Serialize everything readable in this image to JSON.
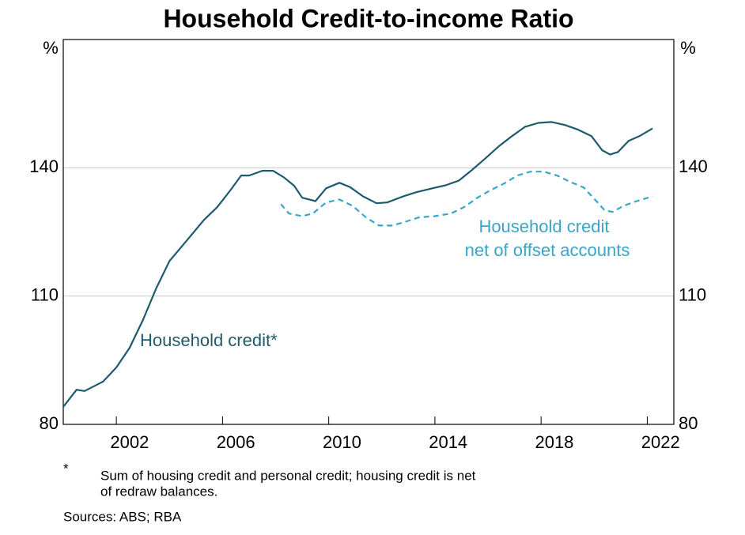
{
  "chart_data": {
    "type": "line",
    "title": "Household Credit-to-income Ratio",
    "y_unit": "%",
    "y2_unit": "%",
    "xlim": [
      2000,
      2023
    ],
    "xticks": [
      2002,
      2006,
      2010,
      2014,
      2018,
      2022
    ],
    "ylim": [
      80,
      170
    ],
    "yticks": [
      80,
      110,
      140
    ],
    "y2lim": [
      80,
      170
    ],
    "y2ticks": [
      80,
      110,
      140
    ],
    "grid": true,
    "series": [
      {
        "name": "Household credit*",
        "color": "#1e5a6e",
        "dash": false,
        "x": [
          2000.0,
          2000.5,
          2000.8,
          2001.5,
          2002.0,
          2002.5,
          2003.0,
          2003.5,
          2004.0,
          2004.3,
          2004.8,
          2005.3,
          2005.8,
          2006.3,
          2006.7,
          2007.0,
          2007.5,
          2007.9,
          2008.3,
          2008.7,
          2009.0,
          2009.5,
          2009.9,
          2010.4,
          2010.8,
          2011.3,
          2011.8,
          2012.2,
          2012.8,
          2013.3,
          2013.9,
          2014.4,
          2014.9,
          2015.4,
          2015.9,
          2016.4,
          2016.9,
          2017.4,
          2017.9,
          2018.4,
          2018.9,
          2019.4,
          2019.9,
          2020.3,
          2020.6,
          2020.9,
          2021.3,
          2021.7,
          2022.2
        ],
        "values": [
          84.1,
          88.1,
          87.8,
          90.0,
          93.3,
          97.9,
          104.4,
          111.8,
          118.2,
          120.4,
          124.1,
          127.8,
          130.8,
          134.8,
          138.2,
          138.2,
          139.3,
          139.3,
          137.8,
          135.8,
          133.0,
          132.2,
          135.2,
          136.5,
          135.5,
          133.3,
          131.7,
          131.9,
          133.3,
          134.3,
          135.2,
          135.9,
          137.0,
          139.5,
          142.2,
          145.0,
          147.4,
          149.6,
          150.5,
          150.7,
          150.0,
          148.9,
          147.4,
          144.1,
          143.1,
          143.7,
          146.3,
          147.4,
          149.2
        ]
      },
      {
        "name": "Household credit net of offset accounts",
        "color": "#3aa5c8",
        "dash": true,
        "x": [
          2008.2,
          2008.5,
          2009.0,
          2009.4,
          2009.9,
          2010.4,
          2010.9,
          2011.4,
          2011.9,
          2012.4,
          2012.9,
          2013.4,
          2014.0,
          2014.6,
          2015.1,
          2015.6,
          2016.1,
          2016.6,
          2017.1,
          2017.6,
          2018.1,
          2018.6,
          2019.1,
          2019.6,
          2020.1,
          2020.4,
          2020.7,
          2021.1,
          2021.6,
          2022.2
        ],
        "values": [
          131.5,
          129.3,
          128.7,
          129.3,
          131.9,
          132.6,
          131.1,
          128.4,
          126.5,
          126.5,
          127.4,
          128.4,
          128.7,
          129.3,
          130.8,
          133.0,
          134.8,
          136.3,
          138.2,
          139.1,
          139.1,
          138.2,
          136.7,
          135.4,
          132.1,
          130.0,
          129.7,
          131.1,
          132.2,
          133.3
        ]
      }
    ],
    "annotations": [
      "Household credit*",
      "Household credit",
      "net of offset accounts"
    ],
    "footnote_marker": "*",
    "footnote": [
      "Sum of housing credit and personal credit; housing credit is net",
      "of redraw balances."
    ],
    "sources": "Sources: ABS; RBA"
  }
}
